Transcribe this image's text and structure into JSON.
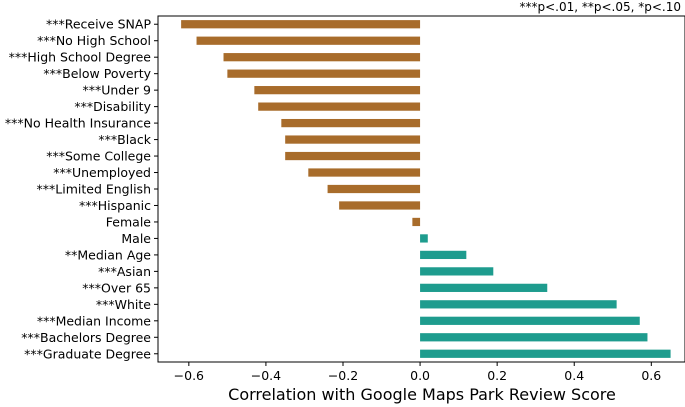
{
  "note": "***p<.01, **p<.05, *p<.10",
  "chart_data": {
    "type": "bar",
    "orientation": "horizontal",
    "xlabel": "Correlation with Google Maps Park Review Score",
    "ylabel": "",
    "xlim": [
      -0.68,
      0.69
    ],
    "xticks": [
      -0.6,
      -0.4,
      -0.2,
      0.0,
      0.2,
      0.4,
      0.6
    ],
    "xtick_labels": [
      "−0.6",
      "−0.4",
      "−0.2",
      "0.0",
      "0.2",
      "0.4",
      "0.6"
    ],
    "grid": false,
    "colors": {
      "negative": "#a86c2b",
      "positive": "#1e9c8e"
    },
    "categories": [
      "***Receive SNAP",
      "***No High School",
      "***High School Degree",
      "***Below Poverty",
      "***Under 9",
      "***Disability",
      "***No Health Insurance",
      "***Black",
      "***Some College",
      "***Unemployed",
      "***Limited English",
      "***Hispanic",
      "Female",
      "Male",
      "**Median Age",
      "***Asian",
      "***Over 65",
      "***White",
      "***Median Income",
      "***Bachelors Degree",
      "***Graduate Degree"
    ],
    "values": [
      -0.62,
      -0.58,
      -0.51,
      -0.5,
      -0.43,
      -0.42,
      -0.36,
      -0.35,
      -0.35,
      -0.29,
      -0.24,
      -0.21,
      -0.02,
      0.02,
      0.12,
      0.19,
      0.33,
      0.51,
      0.57,
      0.59,
      0.65
    ]
  }
}
